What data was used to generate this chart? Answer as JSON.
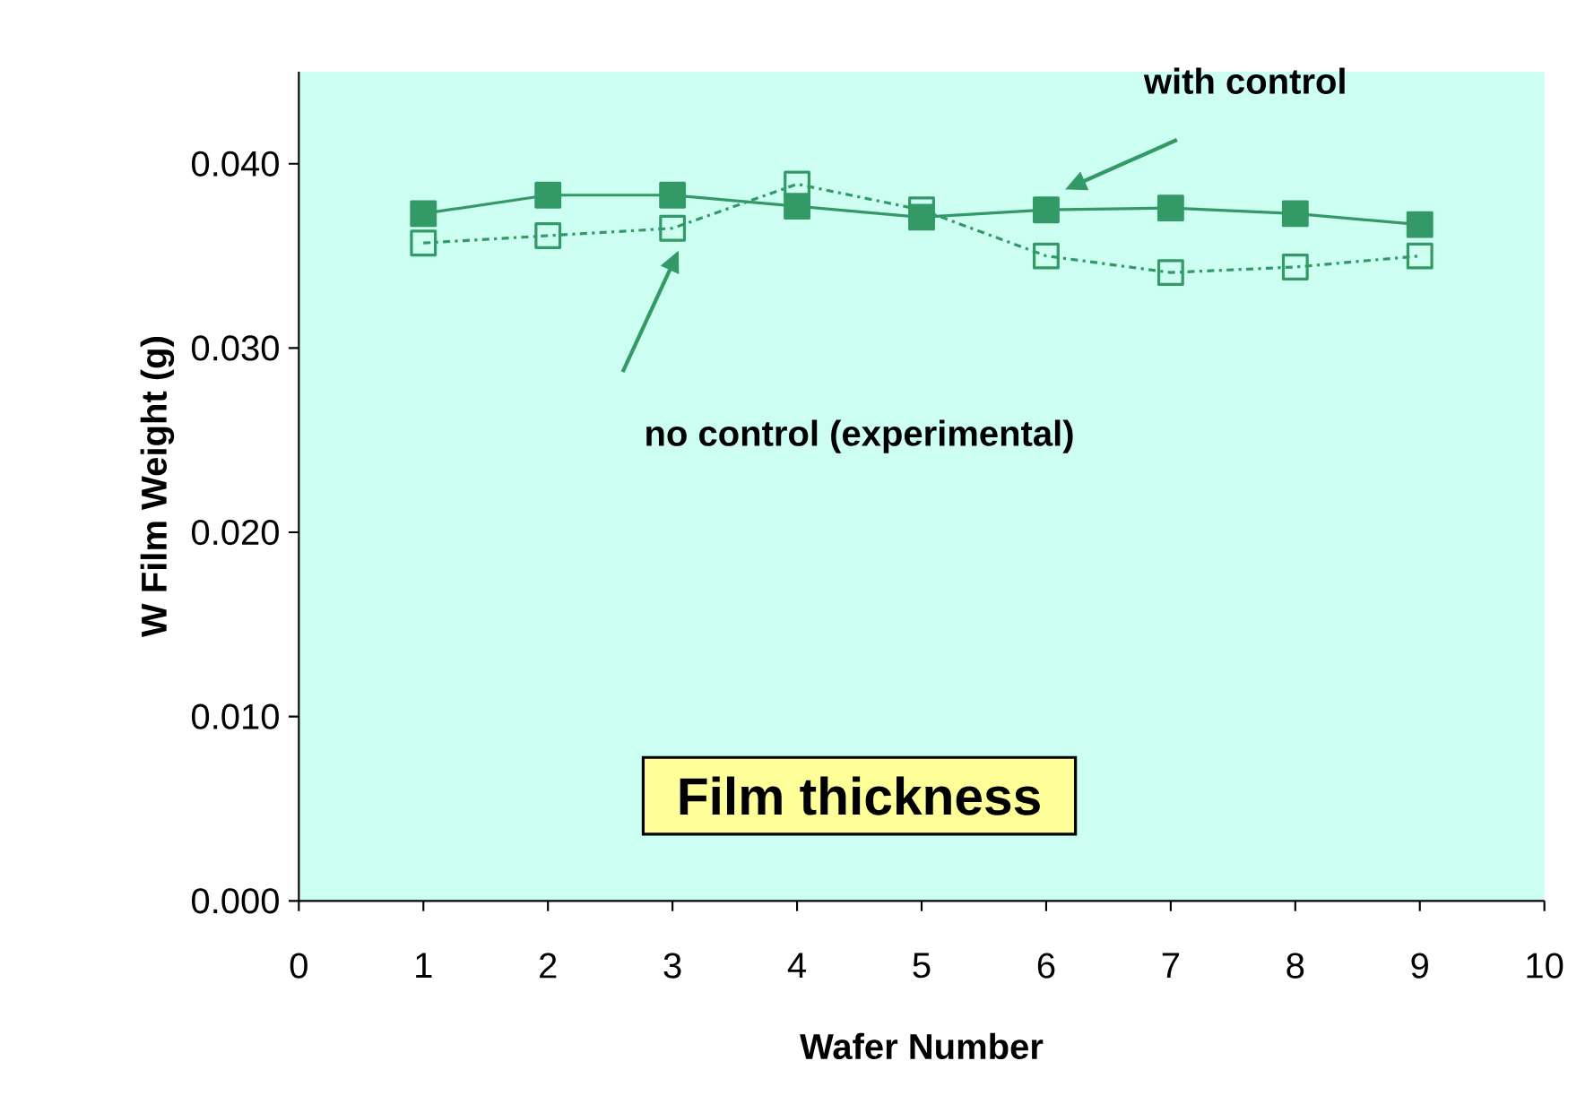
{
  "chart_data": {
    "type": "line",
    "xlabel": "Wafer Number",
    "ylabel": "W Film Weight (g)",
    "x": [
      1,
      2,
      3,
      4,
      5,
      6,
      7,
      8,
      9
    ],
    "series": [
      {
        "color": "#339966",
        "marker": "square",
        "line_style": "solid",
        "values": [
          0.0373,
          0.0383,
          0.0383,
          0.0377,
          0.0371,
          0.0375,
          0.0376,
          0.0373,
          0.0367
        ]
      },
      {
        "color": "#339966",
        "marker": "square",
        "line_style": "dashed",
        "values": [
          0.0357,
          0.0361,
          0.0365,
          0.0389,
          0.0375,
          0.035,
          0.0341,
          0.0344,
          0.035
        ]
      }
    ],
    "xlim": [
      0,
      10
    ],
    "ylim": [
      0,
      0.045
    ],
    "xticks": [
      0,
      1,
      2,
      3,
      4,
      5,
      6,
      7,
      8,
      9,
      10
    ],
    "yticks": [
      {
        "value": 0,
        "label": "0.000"
      },
      {
        "value": 0.01,
        "label": "0.010"
      },
      {
        "value": 0.02,
        "label": "0.020"
      },
      {
        "value": 0.03,
        "label": "0.030"
      },
      {
        "value": 0.04,
        "label": "0.040"
      }
    ],
    "grid": false,
    "annotations": [
      "with control",
      "no control (experimental)",
      "Film thickness"
    ]
  }
}
